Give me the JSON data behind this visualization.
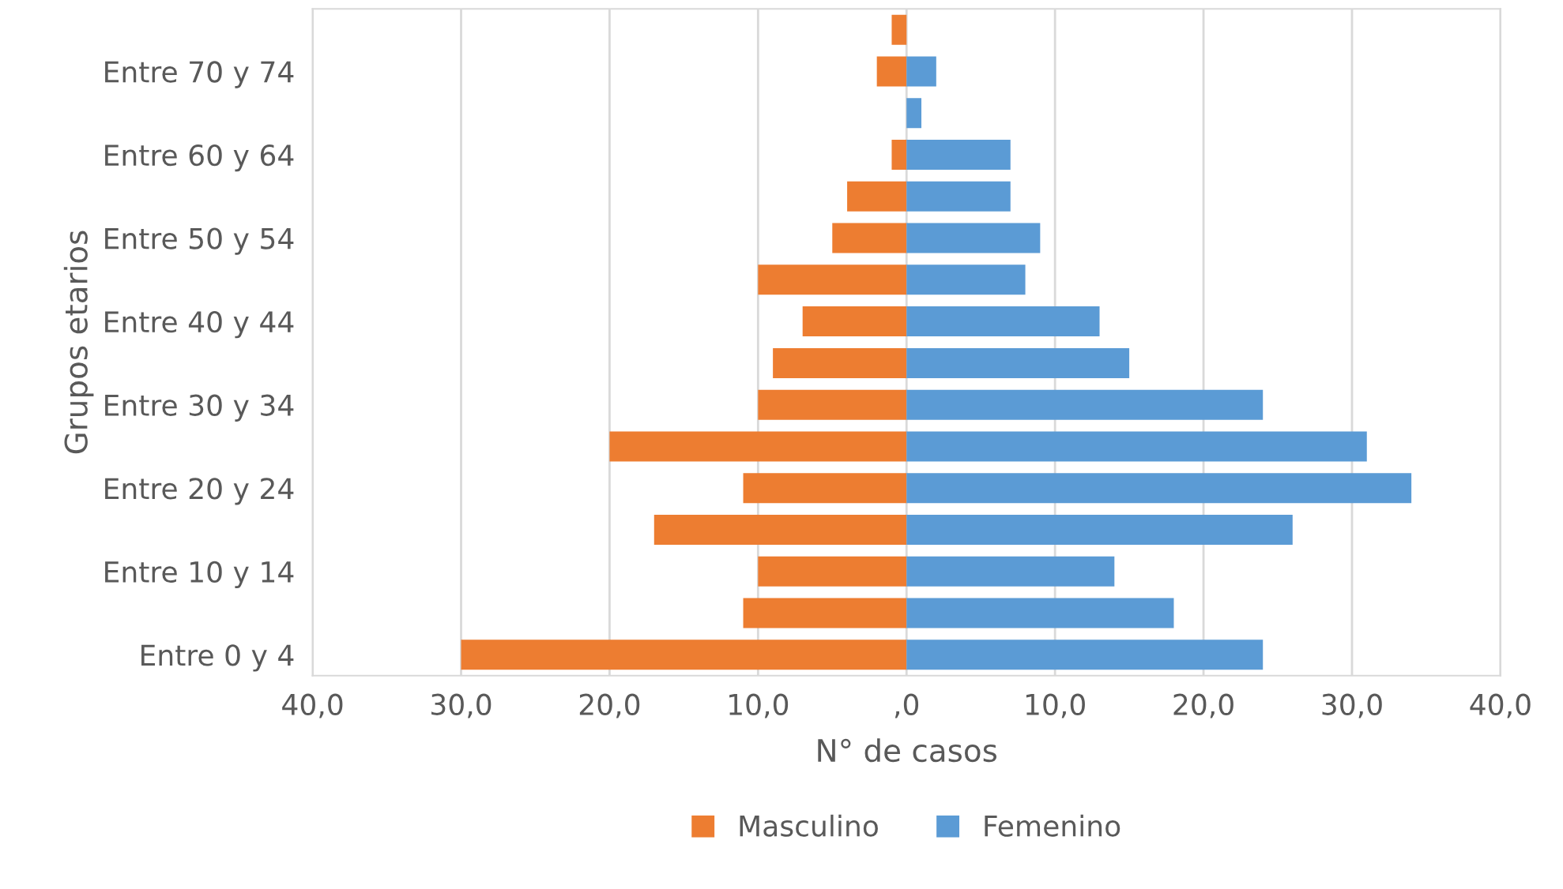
{
  "chart_data": {
    "type": "bar",
    "orientation": "horizontal",
    "stacked": true,
    "xlabel": "N° de casos",
    "ylabel": "Grupos etarios",
    "categories": [
      null,
      "Entre 70 y 74",
      null,
      "Entre 60 y 64",
      null,
      "Entre 50 y 54",
      null,
      "Entre 40 y 44",
      null,
      "Entre 30 y 34",
      null,
      "Entre 20 y 24",
      null,
      "Entre 10 y 14",
      null,
      "Entre 0 y 4"
    ],
    "series": [
      {
        "name": "Masculino",
        "color": "#ed7d31",
        "values": [
          -1,
          -2,
          0,
          -1,
          -4,
          -5,
          -10,
          -7,
          -9,
          -10,
          -20,
          -11,
          -17,
          -10,
          -11,
          -30
        ]
      },
      {
        "name": "Femenino",
        "color": "#5b9bd5",
        "values": [
          0,
          2,
          1,
          7,
          7,
          9,
          8,
          13,
          15,
          24,
          31,
          34,
          26,
          14,
          18,
          24
        ]
      }
    ],
    "xlim": [
      -40,
      40
    ],
    "xticks": [
      {
        "value": -40,
        "label": "40,0"
      },
      {
        "value": -30,
        "label": "30,0"
      },
      {
        "value": -20,
        "label": "20,0"
      },
      {
        "value": -10,
        "label": "10,0"
      },
      {
        "value": 0,
        "label": ",0"
      },
      {
        "value": 10,
        "label": "10,0"
      },
      {
        "value": 20,
        "label": "20,0"
      },
      {
        "value": 30,
        "label": "30,0"
      },
      {
        "value": 40,
        "label": "40,0"
      }
    ],
    "grid": "x",
    "legend": "bottom"
  }
}
